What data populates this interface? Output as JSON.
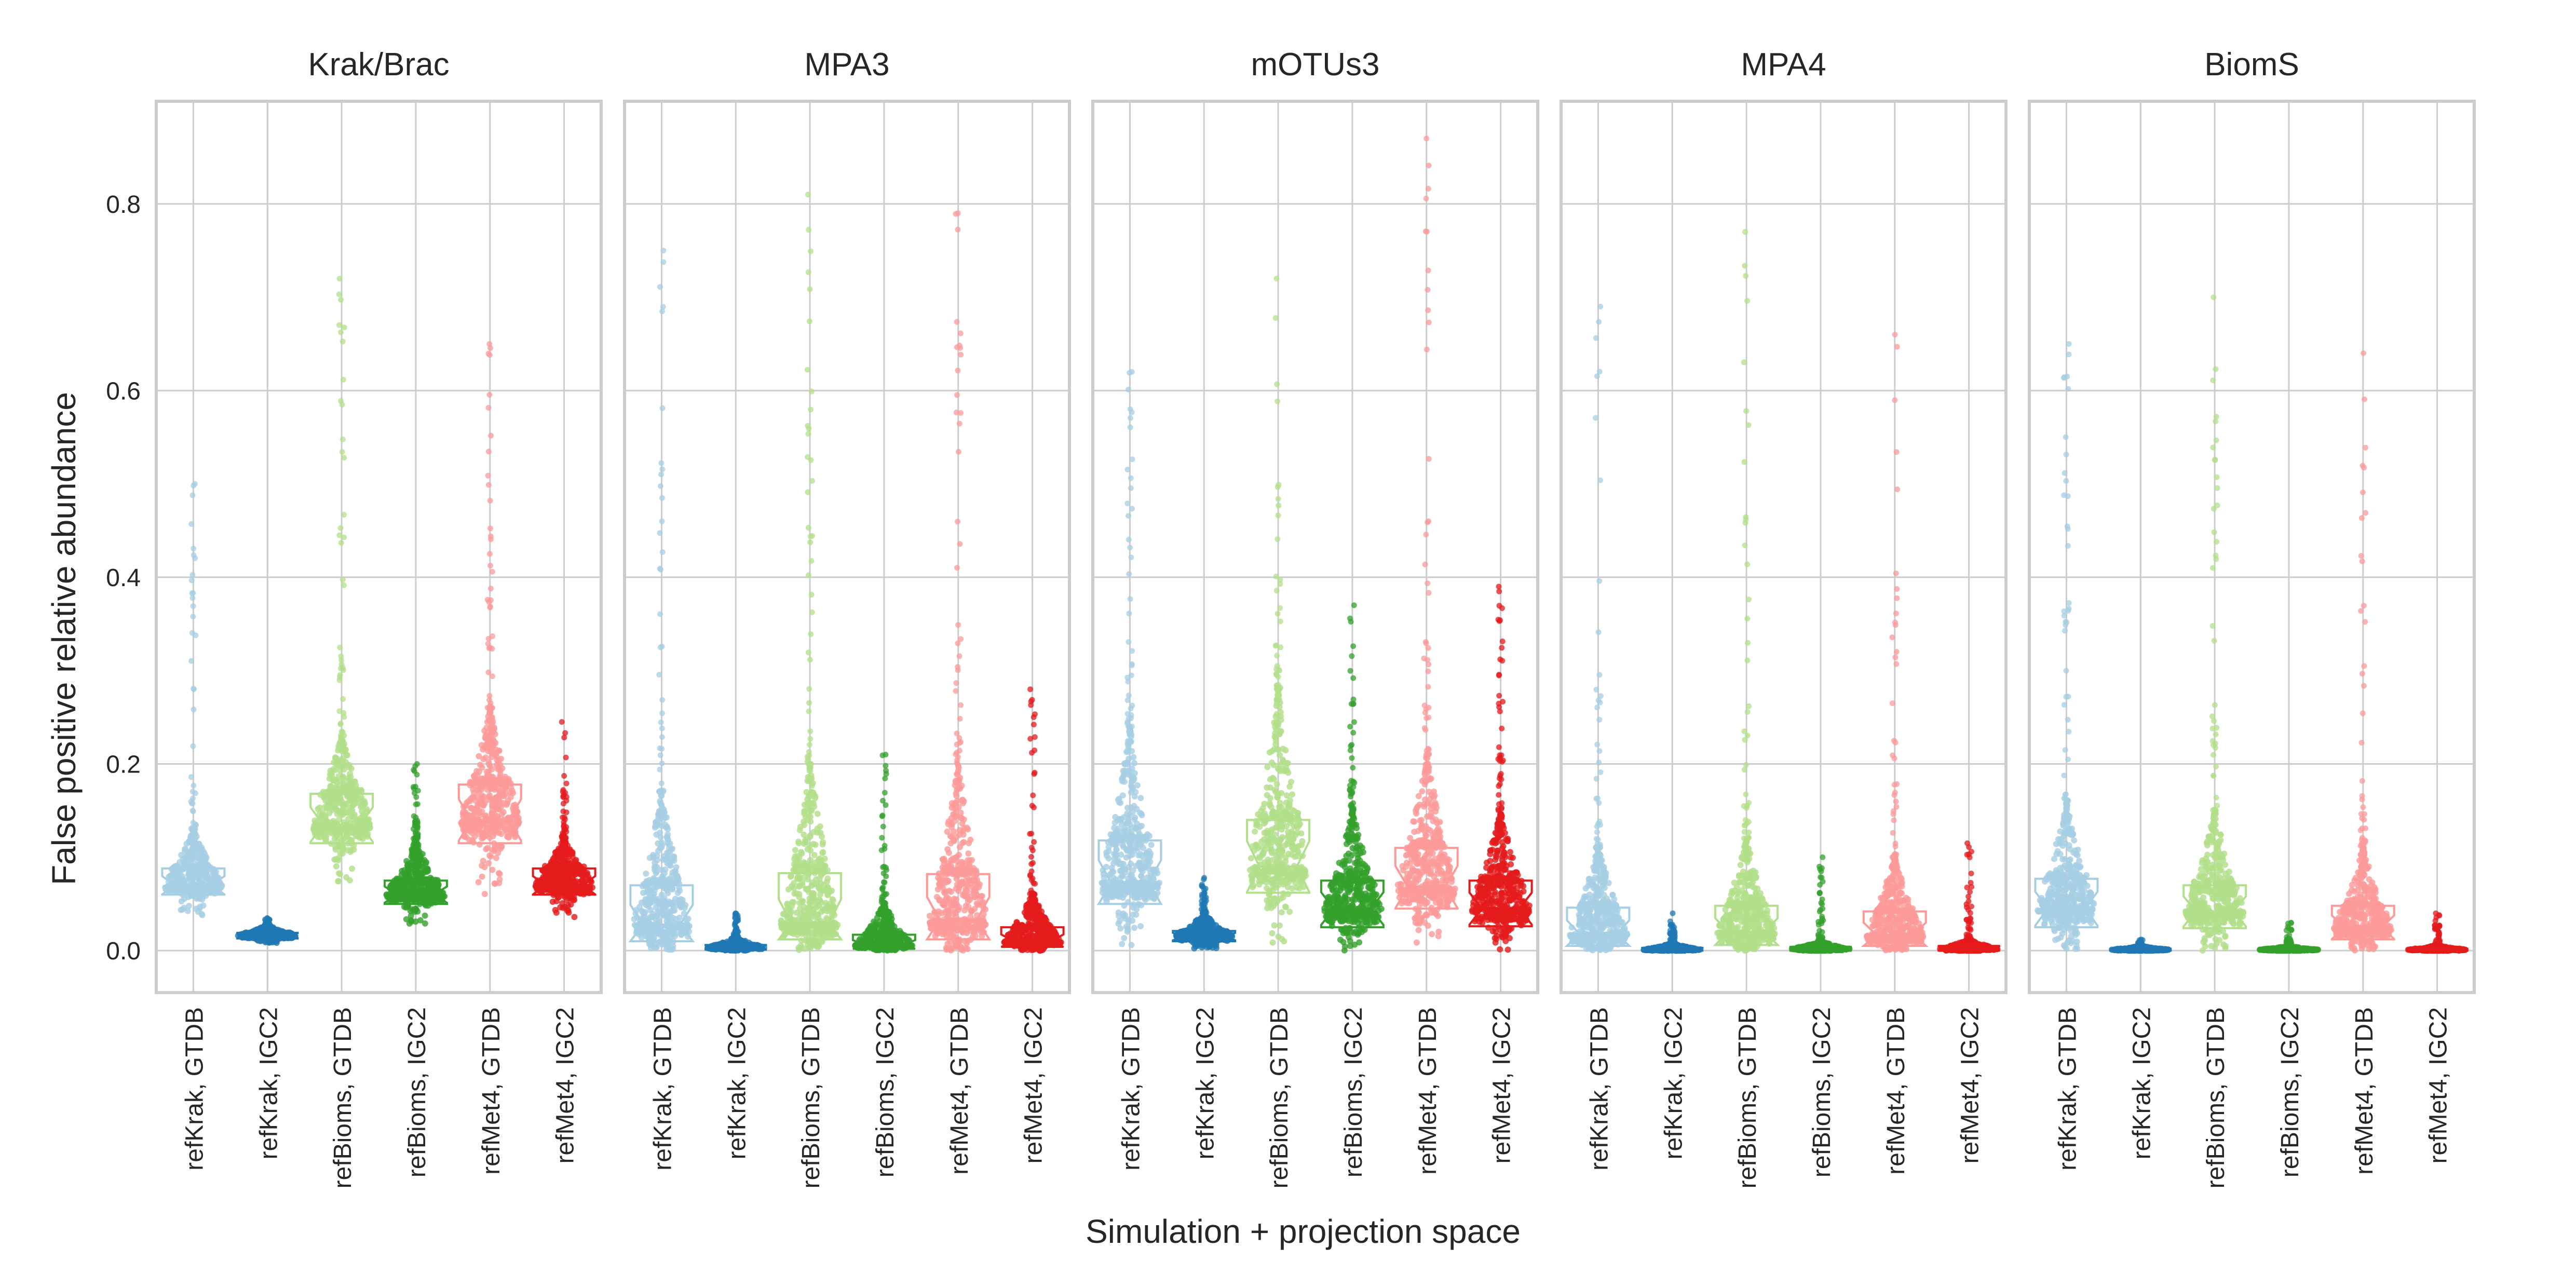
{
  "chart_data": {
    "type": "box",
    "ylabel": "False positive relative abundance",
    "xlabel": "Simulation + projection space",
    "ylim": [
      -0.045,
      0.91
    ],
    "yticks": [
      "0.0",
      "0.2",
      "0.4",
      "0.6",
      "0.8"
    ],
    "ytick_values": [
      0.0,
      0.2,
      0.4,
      0.6,
      0.8
    ],
    "grid": true,
    "categories": [
      "refKrak, GTDB",
      "refKrak, IGC2",
      "refBioms, GTDB",
      "refBioms, IGC2",
      "refMet4, GTDB",
      "refMet4, IGC2"
    ],
    "category_colors": [
      "#a6cee3",
      "#1f78b4",
      "#b2df8a",
      "#33a02c",
      "#fb9a99",
      "#e31a1c"
    ],
    "panels": [
      {
        "title": "Krak/Brac",
        "boxes": [
          {
            "q1": 0.06,
            "median": 0.07,
            "q3": 0.088,
            "min": 0.038,
            "max": 0.13,
            "outliers_max": 0.5
          },
          {
            "q1": 0.013,
            "median": 0.016,
            "q3": 0.019,
            "min": 0.008,
            "max": 0.028,
            "outliers_max": 0.035
          },
          {
            "q1": 0.115,
            "median": 0.135,
            "q3": 0.168,
            "min": 0.07,
            "max": 0.23,
            "outliers_max": 0.72
          },
          {
            "q1": 0.05,
            "median": 0.06,
            "q3": 0.075,
            "min": 0.028,
            "max": 0.12,
            "outliers_max": 0.2
          },
          {
            "q1": 0.115,
            "median": 0.14,
            "q3": 0.178,
            "min": 0.06,
            "max": 0.26,
            "outliers_max": 0.65
          },
          {
            "q1": 0.06,
            "median": 0.07,
            "q3": 0.088,
            "min": 0.035,
            "max": 0.12,
            "outliers_max": 0.245
          }
        ]
      },
      {
        "title": "MPA3",
        "boxes": [
          {
            "q1": 0.01,
            "median": 0.028,
            "q3": 0.07,
            "min": 0.0,
            "max": 0.17,
            "outliers_max": 0.75
          },
          {
            "q1": 0.001,
            "median": 0.003,
            "q3": 0.006,
            "min": 0.0,
            "max": 0.015,
            "outliers_max": 0.04
          },
          {
            "q1": 0.012,
            "median": 0.03,
            "q3": 0.083,
            "min": 0.0,
            "max": 0.2,
            "outliers_max": 0.81
          },
          {
            "q1": 0.002,
            "median": 0.006,
            "q3": 0.017,
            "min": 0.0,
            "max": 0.05,
            "outliers_max": 0.21
          },
          {
            "q1": 0.012,
            "median": 0.033,
            "q3": 0.082,
            "min": 0.0,
            "max": 0.2,
            "outliers_max": 0.79
          },
          {
            "q1": 0.004,
            "median": 0.01,
            "q3": 0.025,
            "min": 0.0,
            "max": 0.06,
            "outliers_max": 0.28
          }
        ]
      },
      {
        "title": "mOTUs3",
        "boxes": [
          {
            "q1": 0.05,
            "median": 0.073,
            "q3": 0.118,
            "min": 0.005,
            "max": 0.24,
            "outliers_max": 0.62
          },
          {
            "q1": 0.01,
            "median": 0.015,
            "q3": 0.021,
            "min": 0.002,
            "max": 0.04,
            "outliers_max": 0.078
          },
          {
            "q1": 0.062,
            "median": 0.09,
            "q3": 0.14,
            "min": 0.005,
            "max": 0.28,
            "outliers_max": 0.72
          },
          {
            "q1": 0.025,
            "median": 0.045,
            "q3": 0.075,
            "min": 0.0,
            "max": 0.15,
            "outliers_max": 0.37
          },
          {
            "q1": 0.045,
            "median": 0.068,
            "q3": 0.11,
            "min": 0.003,
            "max": 0.21,
            "outliers_max": 0.87
          },
          {
            "q1": 0.026,
            "median": 0.045,
            "q3": 0.075,
            "min": 0.0,
            "max": 0.15,
            "outliers_max": 0.39
          }
        ]
      },
      {
        "title": "MPA4",
        "boxes": [
          {
            "q1": 0.005,
            "median": 0.018,
            "q3": 0.046,
            "min": 0.0,
            "max": 0.11,
            "outliers_max": 0.69
          },
          {
            "q1": 0.0,
            "median": 0.001,
            "q3": 0.003,
            "min": 0.0,
            "max": 0.008,
            "outliers_max": 0.04
          },
          {
            "q1": 0.006,
            "median": 0.02,
            "q3": 0.048,
            "min": 0.0,
            "max": 0.12,
            "outliers_max": 0.77
          },
          {
            "q1": 0.0,
            "median": 0.002,
            "q3": 0.004,
            "min": 0.0,
            "max": 0.01,
            "outliers_max": 0.1
          },
          {
            "q1": 0.005,
            "median": 0.017,
            "q3": 0.042,
            "min": 0.0,
            "max": 0.1,
            "outliers_max": 0.66
          },
          {
            "q1": 0.0,
            "median": 0.002,
            "q3": 0.005,
            "min": 0.0,
            "max": 0.012,
            "outliers_max": 0.115
          }
        ]
      },
      {
        "title": "BiomS",
        "boxes": [
          {
            "q1": 0.025,
            "median": 0.045,
            "q3": 0.077,
            "min": 0.0,
            "max": 0.16,
            "outliers_max": 0.65
          },
          {
            "q1": 0.0,
            "median": 0.001,
            "q3": 0.002,
            "min": 0.0,
            "max": 0.005,
            "outliers_max": 0.012
          },
          {
            "q1": 0.024,
            "median": 0.042,
            "q3": 0.07,
            "min": 0.0,
            "max": 0.15,
            "outliers_max": 0.7
          },
          {
            "q1": 0.0,
            "median": 0.001,
            "q3": 0.002,
            "min": 0.0,
            "max": 0.005,
            "outliers_max": 0.03
          },
          {
            "q1": 0.012,
            "median": 0.025,
            "q3": 0.048,
            "min": 0.0,
            "max": 0.11,
            "outliers_max": 0.64
          },
          {
            "q1": 0.0,
            "median": 0.001,
            "q3": 0.002,
            "min": 0.0,
            "max": 0.006,
            "outliers_max": 0.04
          }
        ]
      }
    ]
  }
}
